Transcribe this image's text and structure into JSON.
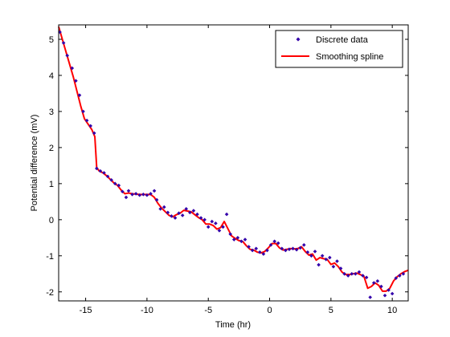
{
  "chart_data": {
    "type": "scatter",
    "xlabel": "Time (hr)",
    "ylabel": "Potential difference (mV)",
    "xlim": [
      -17.2,
      11.3
    ],
    "ylim": [
      -2.25,
      5.4
    ],
    "xticks": [
      -15,
      -10,
      -5,
      0,
      5,
      10
    ],
    "yticks": [
      -2,
      -1,
      0,
      1,
      2,
      3,
      4,
      5
    ],
    "xtick_labels": [
      "-15",
      "-10",
      "-5",
      "0",
      "5",
      "10"
    ],
    "ytick_labels": [
      "-2",
      "-1",
      "0",
      "1",
      "2",
      "3",
      "4",
      "5"
    ],
    "grid": false,
    "legend": {
      "placement": "top-right"
    },
    "series": [
      {
        "name": "Discrete data",
        "kind": "markers",
        "color": "#3300aa",
        "x": [
          -17.1,
          -16.8,
          -16.5,
          -16.1,
          -15.8,
          -15.5,
          -15.2,
          -14.9,
          -14.6,
          -14.3,
          -14.1,
          -13.8,
          -13.5,
          -13.2,
          -12.9,
          -12.6,
          -12.3,
          -12.0,
          -11.7,
          -11.5,
          -11.2,
          -10.9,
          -10.6,
          -10.3,
          -10.0,
          -9.7,
          -9.4,
          -9.2,
          -8.9,
          -8.6,
          -8.3,
          -8.0,
          -7.7,
          -7.4,
          -7.1,
          -6.8,
          -6.5,
          -6.2,
          -5.9,
          -5.6,
          -5.3,
          -5.0,
          -4.7,
          -4.4,
          -4.1,
          -3.8,
          -3.5,
          -3.2,
          -2.9,
          -2.6,
          -2.3,
          -2.0,
          -1.7,
          -1.4,
          -1.1,
          -0.8,
          -0.5,
          -0.2,
          0.1,
          0.4,
          0.7,
          1.0,
          1.3,
          1.6,
          1.9,
          2.2,
          2.5,
          2.8,
          3.1,
          3.4,
          3.7,
          4.0,
          4.3,
          4.6,
          4.9,
          5.2,
          5.5,
          5.8,
          6.1,
          6.4,
          6.7,
          7.0,
          7.3,
          7.6,
          7.9,
          8.2,
          8.5,
          8.8,
          9.1,
          9.4,
          9.7,
          10.0,
          10.3,
          10.6,
          10.9
        ],
        "y": [
          5.2,
          4.9,
          4.55,
          4.2,
          3.85,
          3.45,
          3.0,
          2.75,
          2.6,
          2.4,
          1.42,
          1.35,
          1.3,
          1.2,
          1.1,
          1.0,
          0.95,
          0.78,
          0.62,
          0.8,
          0.7,
          0.72,
          0.68,
          0.7,
          0.68,
          0.72,
          0.8,
          0.55,
          0.3,
          0.35,
          0.2,
          0.1,
          0.05,
          0.18,
          0.12,
          0.3,
          0.2,
          0.25,
          0.15,
          0.05,
          0.0,
          -0.2,
          -0.05,
          -0.1,
          -0.3,
          -0.2,
          0.15,
          -0.4,
          -0.55,
          -0.5,
          -0.6,
          -0.55,
          -0.75,
          -0.85,
          -0.8,
          -0.9,
          -0.95,
          -0.85,
          -0.7,
          -0.6,
          -0.65,
          -0.8,
          -0.85,
          -0.82,
          -0.8,
          -0.83,
          -0.78,
          -0.7,
          -0.9,
          -1.0,
          -0.88,
          -1.25,
          -1.0,
          -1.1,
          -1.05,
          -1.3,
          -1.15,
          -1.35,
          -1.5,
          -1.55,
          -1.5,
          -1.5,
          -1.45,
          -1.55,
          -1.6,
          -2.15,
          -1.75,
          -1.7,
          -1.85,
          -2.1,
          -1.95,
          -2.05,
          -1.62,
          -1.55,
          -1.5
        ]
      },
      {
        "name": "Smoothing spline",
        "kind": "line",
        "color": "#ff0000",
        "x": [
          -17.2,
          -16.9,
          -16.6,
          -16.3,
          -16.0,
          -15.7,
          -15.4,
          -15.1,
          -14.8,
          -14.5,
          -14.25,
          -14.1,
          -13.9,
          -13.6,
          -13.3,
          -13.0,
          -12.7,
          -12.4,
          -12.1,
          -11.8,
          -11.5,
          -11.2,
          -10.9,
          -10.6,
          -10.3,
          -10.0,
          -9.7,
          -9.4,
          -9.1,
          -8.8,
          -8.5,
          -8.2,
          -7.9,
          -7.6,
          -7.3,
          -7.0,
          -6.7,
          -6.4,
          -6.1,
          -5.8,
          -5.5,
          -5.2,
          -4.9,
          -4.6,
          -4.3,
          -4.0,
          -3.7,
          -3.4,
          -3.1,
          -2.8,
          -2.5,
          -2.2,
          -1.9,
          -1.6,
          -1.3,
          -1.0,
          -0.7,
          -0.4,
          -0.1,
          0.2,
          0.5,
          0.8,
          1.1,
          1.4,
          1.7,
          2.0,
          2.3,
          2.6,
          2.9,
          3.2,
          3.5,
          3.8,
          4.1,
          4.4,
          4.7,
          5.0,
          5.3,
          5.6,
          5.9,
          6.2,
          6.5,
          6.8,
          7.1,
          7.4,
          7.7,
          8.0,
          8.3,
          8.6,
          8.9,
          9.2,
          9.5,
          9.8,
          10.1,
          10.4,
          10.7,
          11.0,
          11.3
        ],
        "y": [
          5.35,
          5.0,
          4.65,
          4.3,
          3.95,
          3.55,
          3.15,
          2.8,
          2.65,
          2.5,
          2.3,
          1.45,
          1.35,
          1.3,
          1.22,
          1.12,
          1.02,
          0.95,
          0.82,
          0.72,
          0.74,
          0.72,
          0.71,
          0.7,
          0.7,
          0.7,
          0.7,
          0.62,
          0.45,
          0.32,
          0.22,
          0.12,
          0.08,
          0.14,
          0.18,
          0.26,
          0.24,
          0.22,
          0.14,
          0.06,
          0.0,
          -0.12,
          -0.12,
          -0.16,
          -0.26,
          -0.22,
          -0.05,
          -0.25,
          -0.45,
          -0.52,
          -0.58,
          -0.6,
          -0.72,
          -0.82,
          -0.84,
          -0.9,
          -0.92,
          -0.88,
          -0.78,
          -0.66,
          -0.66,
          -0.78,
          -0.84,
          -0.82,
          -0.8,
          -0.81,
          -0.8,
          -0.75,
          -0.88,
          -0.98,
          -0.95,
          -1.12,
          -1.05,
          -1.08,
          -1.1,
          -1.24,
          -1.2,
          -1.3,
          -1.45,
          -1.52,
          -1.52,
          -1.5,
          -1.48,
          -1.52,
          -1.58,
          -1.9,
          -1.85,
          -1.75,
          -1.82,
          -1.98,
          -1.98,
          -1.9,
          -1.7,
          -1.58,
          -1.5,
          -1.44,
          -1.4
        ]
      }
    ]
  }
}
